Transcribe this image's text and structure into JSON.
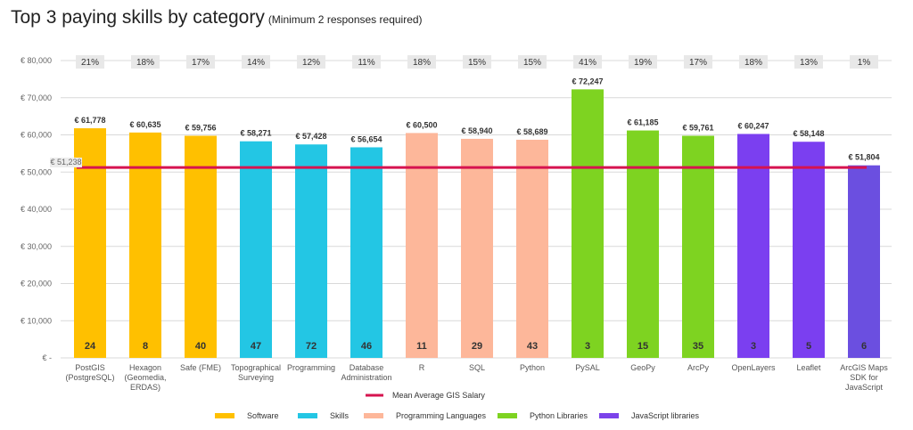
{
  "chart_data": {
    "type": "bar",
    "title": "Top 3 paying skills by category",
    "subtitle": "(Minimum 2 responses required)",
    "y_ticks": [
      "€ -",
      "€ 10,000",
      "€ 20,000",
      "€ 30,000",
      "€ 40,000",
      "€ 50,000",
      "€ 60,000",
      "€ 70,000",
      "€ 80,000"
    ],
    "ylim": [
      0,
      80000
    ],
    "grid": true,
    "categories": [
      [
        "PostGIS",
        "(PostgreSQL)"
      ],
      [
        "Hexagon",
        "(Geomedia,",
        "ERDAS)"
      ],
      [
        "Safe (FME)"
      ],
      [
        "Topographical",
        "Surveying"
      ],
      [
        "Programming"
      ],
      [
        "Database",
        "Administration"
      ],
      [
        "R"
      ],
      [
        "SQL"
      ],
      [
        "Python"
      ],
      [
        "PySAL"
      ],
      [
        "GeoPy"
      ],
      [
        "ArcPy"
      ],
      [
        "OpenLayers"
      ],
      [
        "Leaflet"
      ],
      [
        "ArcGIS Maps",
        "SDK for",
        "JavaScript"
      ]
    ],
    "values": [
      61778,
      60635,
      59756,
      58271,
      57428,
      56654,
      60500,
      58940,
      58689,
      72247,
      61185,
      59761,
      60247,
      58148,
      51804
    ],
    "value_labels": [
      "€ 61,778",
      "€ 60,635",
      "€ 59,756",
      "€ 58,271",
      "€ 57,428",
      "€ 56,654",
      "€ 60,500",
      "€ 58,940",
      "€ 58,689",
      "€ 72,247",
      "€ 61,185",
      "€ 59,761",
      "€ 60,247",
      "€ 58,148",
      "€ 51,804"
    ],
    "responses": [
      "24",
      "8",
      "40",
      "47",
      "72",
      "46",
      "11",
      "29",
      "43",
      "3",
      "15",
      "35",
      "3",
      "5",
      "6"
    ],
    "percentages": [
      "21%",
      "18%",
      "17%",
      "14%",
      "12%",
      "11%",
      "18%",
      "15%",
      "15%",
      "41%",
      "19%",
      "17%",
      "18%",
      "13%",
      "1%"
    ],
    "groups": [
      "Software",
      "Software",
      "Software",
      "Skills",
      "Skills",
      "Skills",
      "Programming Languages",
      "Programming Languages",
      "Programming Languages",
      "Python Libraries",
      "Python Libraries",
      "Python Libraries",
      "JavaScript libraries",
      "JavaScript libraries",
      "JavaScript libraries"
    ],
    "legend": [
      {
        "name": "Software",
        "color": "#FFC000"
      },
      {
        "name": "Skills",
        "color": "#23C6E4"
      },
      {
        "name": "Programming Languages",
        "color": "#FDB79A"
      },
      {
        "name": "Python Libraries",
        "color": "#7ED321"
      },
      {
        "name": "JavaScript libraries",
        "color": "#7B42EA"
      }
    ],
    "legend_placement": "bottom",
    "bar_colors": [
      "#FFC000",
      "#FFC000",
      "#FFC000",
      "#23C6E4",
      "#23C6E4",
      "#23C6E4",
      "#FDB79A",
      "#FDB79A",
      "#FDB79A",
      "#7ED321",
      "#7ED321",
      "#7ED321",
      "#7B3FF0",
      "#7B3FF0",
      "#6B4FE0"
    ],
    "mean_line": {
      "name": "Mean Average GIS Salary",
      "value": 51238,
      "label": "€ 51,238",
      "color": "#D6134F"
    }
  }
}
